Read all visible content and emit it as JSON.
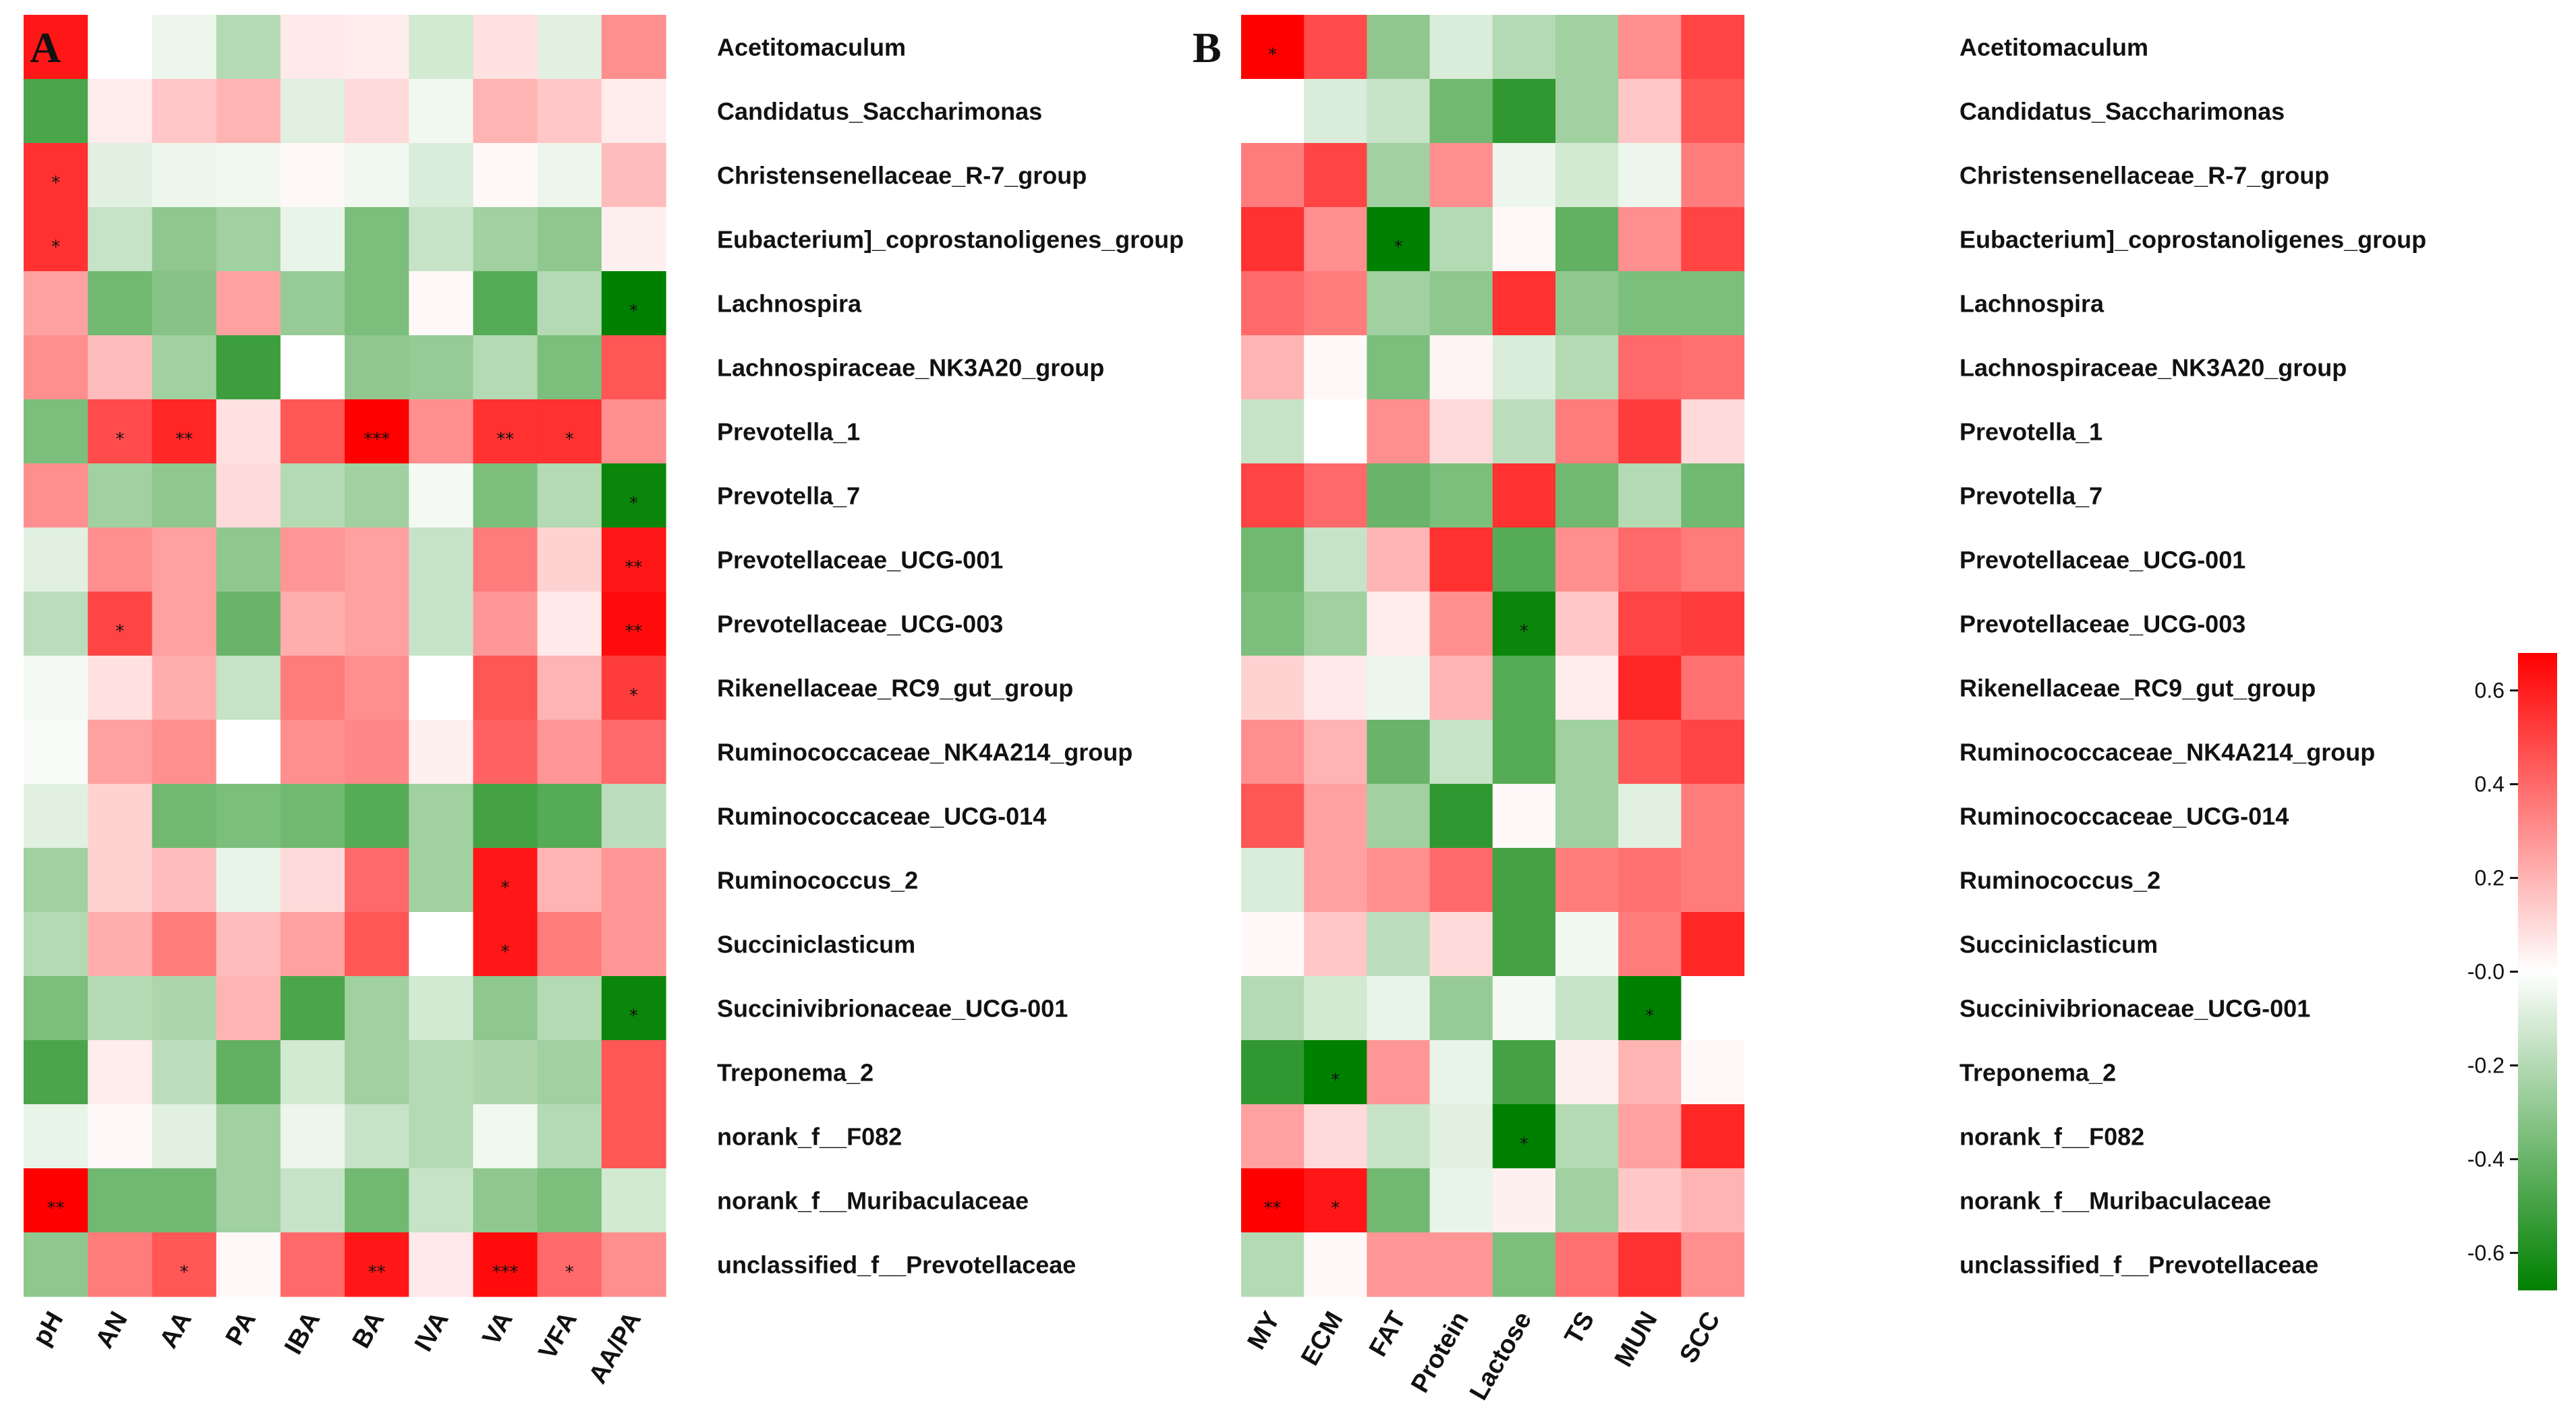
{
  "chart_data": [
    {
      "type": "heatmap",
      "panel_label": "A",
      "title": "",
      "rows": [
        "Acetitomaculum",
        "Candidatus_Saccharimonas",
        "Christensenellaceae_R-7_group",
        "Eubacterium]_coprostanoligenes_group",
        "Lachnospira",
        "Lachnospiraceae_NK3A20_group",
        "Prevotella_1",
        "Prevotella_7",
        "Prevotellaceae_UCG-001",
        "Prevotellaceae_UCG-003",
        "Rikenellaceae_RC9_gut_group",
        "Ruminococcaceae_NK4A214_group",
        "Ruminococcaceae_UCG-014",
        "Ruminococcus_2",
        "Succiniclasticum",
        "Succinivibrionaceae_UCG-001",
        "Treponema_2",
        "norank_f__F082",
        "norank_f__Muribaculaceae",
        "unclassified_f__Prevotellaceae"
      ],
      "columns": [
        "pH",
        "AN",
        "AA",
        "PA",
        "IBA",
        "BA",
        "IVA",
        "VA",
        "VFA",
        "AA/PA"
      ],
      "values": [
        [
          0.62,
          0.0,
          -0.05,
          -0.2,
          0.06,
          0.05,
          -0.12,
          0.08,
          -0.08,
          0.3
        ],
        [
          -0.48,
          0.05,
          0.15,
          0.2,
          -0.08,
          0.1,
          -0.04,
          0.2,
          0.15,
          0.05
        ],
        [
          0.55,
          -0.08,
          -0.05,
          -0.04,
          0.02,
          -0.04,
          -0.1,
          0.02,
          -0.05,
          0.18
        ],
        [
          0.55,
          -0.15,
          -0.3,
          -0.25,
          -0.06,
          -0.35,
          -0.15,
          -0.25,
          -0.3,
          0.04
        ],
        [
          0.25,
          -0.38,
          -0.32,
          0.25,
          -0.28,
          -0.35,
          0.02,
          -0.45,
          -0.2,
          -0.7
        ],
        [
          0.3,
          0.18,
          -0.25,
          -0.52,
          0.0,
          -0.3,
          -0.28,
          -0.2,
          -0.35,
          0.45
        ],
        [
          -0.35,
          0.48,
          0.58,
          0.08,
          0.45,
          0.68,
          0.3,
          0.55,
          0.55,
          0.3
        ],
        [
          0.3,
          -0.25,
          -0.3,
          0.1,
          -0.2,
          -0.25,
          -0.03,
          -0.35,
          -0.2,
          -0.65
        ],
        [
          -0.08,
          0.3,
          0.25,
          -0.3,
          0.28,
          0.25,
          -0.15,
          0.35,
          0.12,
          0.62
        ],
        [
          -0.18,
          0.5,
          0.25,
          -0.4,
          0.22,
          0.25,
          -0.15,
          0.28,
          0.06,
          0.65
        ],
        [
          -0.03,
          0.08,
          0.22,
          -0.15,
          0.35,
          0.3,
          0.0,
          0.45,
          0.2,
          0.52
        ],
        [
          -0.02,
          0.25,
          0.3,
          0.0,
          0.3,
          0.32,
          0.04,
          0.42,
          0.28,
          0.4
        ],
        [
          -0.08,
          0.12,
          -0.38,
          -0.35,
          -0.38,
          -0.45,
          -0.25,
          -0.5,
          -0.45,
          -0.18
        ],
        [
          -0.25,
          0.12,
          0.18,
          -0.06,
          0.1,
          0.4,
          -0.25,
          0.62,
          0.2,
          0.28
        ],
        [
          -0.2,
          0.22,
          0.35,
          0.18,
          0.25,
          0.45,
          0.0,
          0.62,
          0.35,
          0.28
        ],
        [
          -0.35,
          -0.2,
          -0.22,
          0.2,
          -0.48,
          -0.25,
          -0.12,
          -0.3,
          -0.2,
          -0.65
        ],
        [
          -0.48,
          0.05,
          -0.18,
          -0.42,
          -0.12,
          -0.25,
          -0.2,
          -0.22,
          -0.25,
          0.45
        ],
        [
          -0.06,
          0.02,
          -0.08,
          -0.25,
          -0.05,
          -0.15,
          -0.2,
          -0.04,
          -0.2,
          0.45
        ],
        [
          0.68,
          -0.38,
          -0.38,
          -0.25,
          -0.15,
          -0.38,
          -0.15,
          -0.3,
          -0.35,
          -0.12
        ],
        [
          -0.3,
          0.35,
          0.45,
          0.02,
          0.4,
          0.62,
          0.06,
          0.65,
          0.4,
          0.3
        ]
      ],
      "significance": [
        [
          "",
          "",
          "",
          "",
          "",
          "",
          "",
          "",
          "",
          ""
        ],
        [
          "",
          "",
          "",
          "",
          "",
          "",
          "",
          "",
          "",
          ""
        ],
        [
          "*",
          "",
          "",
          "",
          "",
          "",
          "",
          "",
          "",
          ""
        ],
        [
          "*",
          "",
          "",
          "",
          "",
          "",
          "",
          "",
          "",
          ""
        ],
        [
          "",
          "",
          "",
          "",
          "",
          "",
          "",
          "",
          "",
          "*"
        ],
        [
          "",
          "",
          "",
          "",
          "",
          "",
          "",
          "",
          "",
          ""
        ],
        [
          "",
          "*",
          "**",
          "",
          "",
          "***",
          "",
          "**",
          "*",
          ""
        ],
        [
          "",
          "",
          "",
          "",
          "",
          "",
          "",
          "",
          "",
          "*"
        ],
        [
          "",
          "",
          "",
          "",
          "",
          "",
          "",
          "",
          "",
          "**"
        ],
        [
          "",
          "*",
          "",
          "",
          "",
          "",
          "",
          "",
          "",
          "**"
        ],
        [
          "",
          "",
          "",
          "",
          "",
          "",
          "",
          "",
          "",
          "*"
        ],
        [
          "",
          "",
          "",
          "",
          "",
          "",
          "",
          "",
          "",
          ""
        ],
        [
          "",
          "",
          "",
          "",
          "",
          "",
          "",
          "",
          "",
          ""
        ],
        [
          "",
          "",
          "",
          "",
          "",
          "",
          "",
          "*",
          "",
          ""
        ],
        [
          "",
          "",
          "",
          "",
          "",
          "",
          "",
          "*",
          "",
          ""
        ],
        [
          "",
          "",
          "",
          "",
          "",
          "",
          "",
          "",
          "",
          "*"
        ],
        [
          "",
          "",
          "",
          "",
          "",
          "",
          "",
          "",
          "",
          ""
        ],
        [
          "",
          "",
          "",
          "",
          "",
          "",
          "",
          "",
          "",
          ""
        ],
        [
          "**",
          "",
          "",
          "",
          "",
          "",
          "",
          "",
          "",
          ""
        ],
        [
          "",
          "",
          "*",
          "",
          "",
          "**",
          "",
          "***",
          "*",
          ""
        ]
      ]
    },
    {
      "type": "heatmap",
      "panel_label": "B",
      "title": "",
      "rows": [
        "Acetitomaculum",
        "Candidatus_Saccharimonas",
        "Christensenellaceae_R-7_group",
        "Eubacterium]_coprostanoligenes_group",
        "Lachnospira",
        "Lachnospiraceae_NK3A20_group",
        "Prevotella_1",
        "Prevotella_7",
        "Prevotellaceae_UCG-001",
        "Prevotellaceae_UCG-003",
        "Rikenellaceae_RC9_gut_group",
        "Ruminococcaceae_NK4A214_group",
        "Ruminococcaceae_UCG-014",
        "Ruminococcus_2",
        "Succiniclasticum",
        "Succinivibrionaceae_UCG-001",
        "Treponema_2",
        "norank_f__F082",
        "norank_f__Muribaculaceae",
        "unclassified_f__Prevotellaceae"
      ],
      "columns": [
        "MY",
        "ECM",
        "FAT",
        "Protein",
        "Lactose",
        "TS",
        "MUN",
        "SCC"
      ],
      "values": [
        [
          0.68,
          0.48,
          -0.3,
          -0.1,
          -0.2,
          -0.25,
          0.3,
          0.5
        ],
        [
          0.0,
          -0.1,
          -0.15,
          -0.38,
          -0.55,
          -0.25,
          0.15,
          0.45
        ],
        [
          0.35,
          0.5,
          -0.25,
          0.3,
          -0.05,
          -0.12,
          -0.05,
          0.35
        ],
        [
          0.55,
          0.3,
          -0.68,
          -0.2,
          0.02,
          -0.42,
          0.3,
          0.5
        ],
        [
          0.4,
          0.35,
          -0.25,
          -0.3,
          0.55,
          -0.3,
          -0.35,
          -0.35
        ],
        [
          0.2,
          0.02,
          -0.35,
          0.03,
          -0.1,
          -0.2,
          0.4,
          0.38
        ],
        [
          -0.15,
          0.0,
          0.3,
          0.1,
          -0.18,
          0.35,
          0.52,
          0.1
        ],
        [
          0.5,
          0.4,
          -0.4,
          -0.35,
          0.55,
          -0.38,
          -0.2,
          -0.38
        ],
        [
          -0.38,
          -0.15,
          0.2,
          0.55,
          -0.45,
          0.3,
          0.4,
          0.35
        ],
        [
          -0.35,
          -0.25,
          0.05,
          0.3,
          -0.65,
          0.15,
          0.5,
          0.52
        ],
        [
          0.12,
          0.06,
          -0.05,
          0.2,
          -0.45,
          0.05,
          0.58,
          0.38
        ],
        [
          0.3,
          0.2,
          -0.4,
          -0.15,
          -0.45,
          -0.25,
          0.45,
          0.5
        ],
        [
          0.45,
          0.25,
          -0.25,
          -0.55,
          0.02,
          -0.25,
          -0.08,
          0.35
        ],
        [
          -0.1,
          0.25,
          0.3,
          0.4,
          -0.5,
          0.35,
          0.38,
          0.35
        ],
        [
          0.02,
          0.15,
          -0.18,
          0.1,
          -0.5,
          -0.04,
          0.35,
          0.58
        ],
        [
          -0.2,
          -0.12,
          -0.06,
          -0.28,
          -0.03,
          -0.15,
          -0.68,
          0.0
        ],
        [
          -0.55,
          -0.7,
          0.28,
          -0.06,
          -0.5,
          0.04,
          0.2,
          0.02
        ],
        [
          0.25,
          0.1,
          -0.15,
          -0.08,
          -0.7,
          -0.2,
          0.25,
          0.58
        ],
        [
          0.7,
          0.62,
          -0.38,
          -0.06,
          0.04,
          -0.25,
          0.15,
          0.2
        ],
        [
          -0.2,
          0.02,
          0.28,
          0.28,
          -0.35,
          0.38,
          0.55,
          0.3
        ]
      ],
      "significance": [
        [
          "*",
          "",
          "",
          "",
          "",
          "",
          "",
          ""
        ],
        [
          "",
          "",
          "",
          "",
          "",
          "",
          "",
          ""
        ],
        [
          "",
          "",
          "",
          "",
          "",
          "",
          "",
          ""
        ],
        [
          "",
          "",
          "*",
          "",
          "",
          "",
          "",
          ""
        ],
        [
          "",
          "",
          "",
          "",
          "",
          "",
          "",
          ""
        ],
        [
          "",
          "",
          "",
          "",
          "",
          "",
          "",
          ""
        ],
        [
          "",
          "",
          "",
          "",
          "",
          "",
          "",
          ""
        ],
        [
          "",
          "",
          "",
          "",
          "",
          "",
          "",
          ""
        ],
        [
          "",
          "",
          "",
          "",
          "",
          "",
          "",
          ""
        ],
        [
          "",
          "",
          "",
          "",
          "*",
          "",
          "",
          ""
        ],
        [
          "",
          "",
          "",
          "",
          "",
          "",
          "",
          ""
        ],
        [
          "",
          "",
          "",
          "",
          "",
          "",
          "",
          ""
        ],
        [
          "",
          "",
          "",
          "",
          "",
          "",
          "",
          ""
        ],
        [
          "",
          "",
          "",
          "",
          "",
          "",
          "",
          ""
        ],
        [
          "",
          "",
          "",
          "",
          "",
          "",
          "",
          ""
        ],
        [
          "",
          "",
          "",
          "",
          "",
          "",
          "*",
          ""
        ],
        [
          "",
          "*",
          "",
          "",
          "",
          "",
          "",
          ""
        ],
        [
          "",
          "",
          "",
          "",
          "*",
          "",
          "",
          ""
        ],
        [
          "**",
          "*",
          "",
          "",
          "",
          "",
          "",
          ""
        ],
        [
          "",
          "",
          "",
          "",
          "",
          "",
          "",
          ""
        ]
      ]
    }
  ],
  "colorbar": {
    "min": -0.68,
    "max": 0.68,
    "ticks": [
      0.6,
      0.4,
      0.2,
      0.0,
      -0.2,
      -0.4,
      -0.6
    ],
    "tick_labels": [
      "0.6",
      "0.4",
      "0.2",
      "-0.0",
      "-0.2",
      "-0.4",
      "-0.6"
    ],
    "colors": {
      "negative": "#008000",
      "zero": "#ffffff",
      "positive": "#ff0000"
    }
  }
}
